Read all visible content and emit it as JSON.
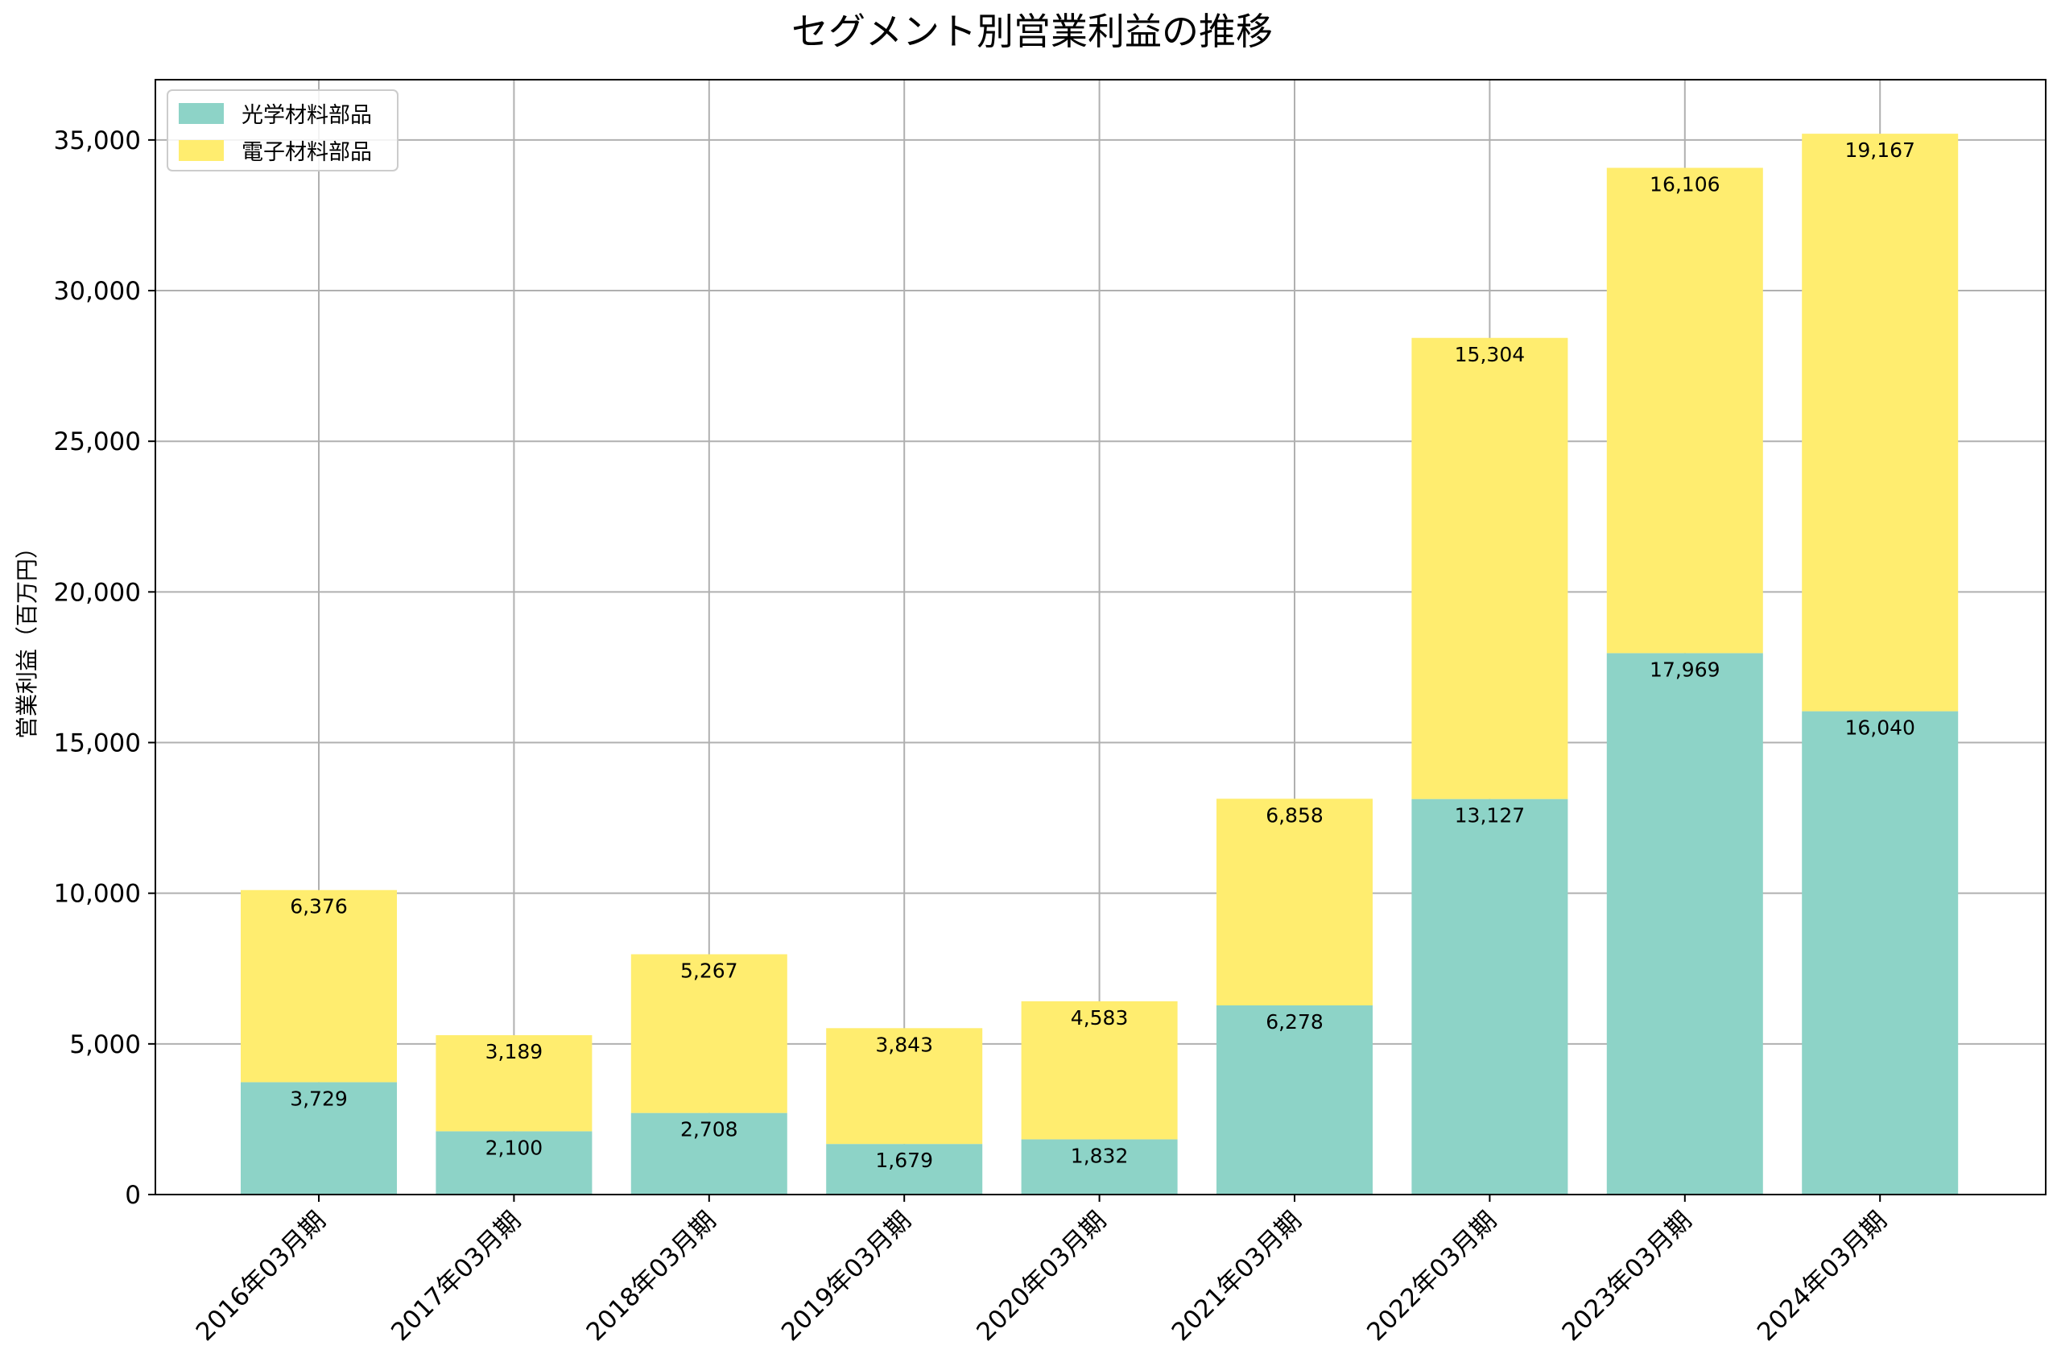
{
  "chart_data": {
    "type": "bar",
    "stacked": true,
    "title": "セグメント別営業利益の推移",
    "xlabel": "",
    "ylabel": "営業利益（百万円）",
    "ylim": [
      0,
      37000
    ],
    "yticks": [
      0,
      5000,
      10000,
      15000,
      20000,
      25000,
      30000,
      35000
    ],
    "ytick_labels": [
      "0",
      "5,000",
      "10,000",
      "15,000",
      "20,000",
      "25,000",
      "30,000",
      "35,000"
    ],
    "grid": true,
    "legend_position": "top-left",
    "categories": [
      "2016年03月期",
      "2017年03月期",
      "2018年03月期",
      "2019年03月期",
      "2020年03月期",
      "2021年03月期",
      "2022年03月期",
      "2023年03月期",
      "2024年03月期"
    ],
    "series": [
      {
        "name": "光学材料部品",
        "color": "#8dd3c7",
        "values": [
          3729,
          2100,
          2708,
          1679,
          1832,
          6278,
          13127,
          17969,
          16040
        ],
        "labels": [
          "3,729",
          "2,100",
          "2,708",
          "1,679",
          "1,832",
          "6,278",
          "13,127",
          "17,969",
          "16,040"
        ]
      },
      {
        "name": "電子材料部品",
        "color": "#ffed6f",
        "values": [
          6376,
          3189,
          5267,
          3843,
          4583,
          6858,
          15304,
          16106,
          19167
        ],
        "labels": [
          "6,376",
          "3,189",
          "5,267",
          "3,843",
          "4,583",
          "6,858",
          "15,304",
          "16,106",
          "19,167"
        ]
      }
    ]
  }
}
